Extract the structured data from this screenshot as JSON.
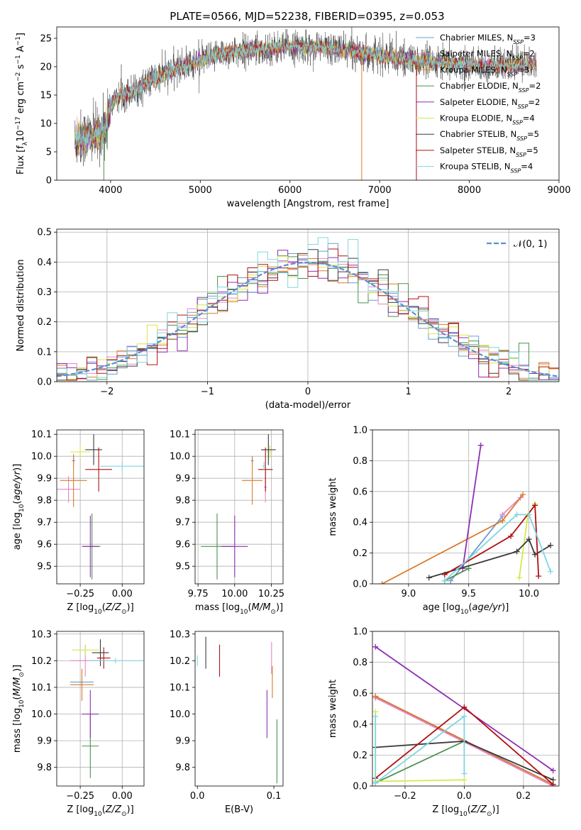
{
  "title": "PLATE=0566, MJD=52238, FIBERID=0395, z=0.053",
  "model_colors": [
    "#6b9bd0",
    "#e884c4",
    "#d97b2b",
    "#4d8f4f",
    "#8e2fb0",
    "#d6e84a",
    "#3a3a3a",
    "#b01010",
    "#7fd6df"
  ],
  "chart_data": [
    {
      "id": "spectrum",
      "type": "line",
      "xlabel": "wavelength [Angstrom, rest frame]",
      "ylabel": "Flux [f_λ10^-17 erg cm^-2 s^-1 A^-1]",
      "xlim": [
        3400,
        9000
      ],
      "ylim": [
        0,
        27
      ],
      "xticks": [
        "4000",
        "5000",
        "6000",
        "7000",
        "8000",
        "9000"
      ],
      "yticks": [
        "0",
        "5",
        "10",
        "15",
        "20",
        "25"
      ],
      "grid": false,
      "legend_position": "right",
      "legend": [
        {
          "base": "Chabrier MILES, N",
          "sub": "SSP",
          "tail": "=3"
        },
        {
          "base": "Salpeter MILES, N",
          "sub": "SSP",
          "tail": "=2"
        },
        {
          "base": "Kroupa MILES, N",
          "sub": "SSP",
          "tail": "=3"
        },
        {
          "base": "Chabrier ELODIE, N",
          "sub": "SSP",
          "tail": "=2"
        },
        {
          "base": "Salpeter ELODIE, N",
          "sub": "SSP",
          "tail": "=2"
        },
        {
          "base": "Kroupa ELODIE, N",
          "sub": "SSP",
          "tail": "=4"
        },
        {
          "base": "Chabrier STELIB, N",
          "sub": "SSP",
          "tail": "=5"
        },
        {
          "base": "Salpeter STELIB, N",
          "sub": "SSP",
          "tail": "=5"
        },
        {
          "base": "Kroupa STELIB, N",
          "sub": "SSP",
          "tail": "=4"
        }
      ],
      "continuum": [
        [
          3600,
          7
        ],
        [
          3700,
          7.5
        ],
        [
          3850,
          8
        ],
        [
          3950,
          9.5
        ],
        [
          4000,
          13
        ],
        [
          4100,
          15
        ],
        [
          4300,
          16
        ],
        [
          4500,
          18
        ],
        [
          4800,
          20
        ],
        [
          5000,
          21
        ],
        [
          5300,
          22.5
        ],
        [
          5600,
          23
        ],
        [
          6000,
          23.5
        ],
        [
          6300,
          23.5
        ],
        [
          6600,
          23
        ],
        [
          7000,
          22
        ],
        [
          7400,
          21
        ],
        [
          7800,
          20.5
        ],
        [
          8200,
          20
        ],
        [
          8700,
          20.5
        ]
      ],
      "spikes": [
        [
          3925,
          0,
          "#4d8f4f"
        ],
        [
          6800,
          0,
          "#d97b2b"
        ],
        [
          7410,
          0,
          "#b01010"
        ]
      ]
    },
    {
      "id": "residuals",
      "type": "step",
      "xlabel": "(data-model)/error",
      "ylabel": "Normed distribution",
      "xlim": [
        -2.5,
        2.5
      ],
      "ylim": [
        0,
        0.51
      ],
      "xticks": [
        "−2",
        "−1",
        "0",
        "1",
        "2"
      ],
      "yticks": [
        "0.0",
        "0.1",
        "0.2",
        "0.3",
        "0.4",
        "0.5"
      ],
      "grid": true,
      "legend_position": "top-right",
      "gauss_label": "𝒩(0, 1)",
      "bin_width": 0.1
    },
    {
      "id": "age_vs_Z",
      "type": "errorbar",
      "xlabel": "Z [log10(Z/Z⊙)]",
      "ylabel": "age  [log10(age/yr)]",
      "xlim": [
        -0.39,
        0.13
      ],
      "ylim": [
        9.42,
        10.12
      ],
      "xticks": [
        "−0.25",
        "0.00"
      ],
      "yticks": [
        "9.5",
        "9.6",
        "9.7",
        "9.8",
        "9.9",
        "10.0",
        "10.1"
      ],
      "grid": true,
      "points": [
        {
          "x": -0.29,
          "y": 9.98,
          "xerr": 0.01,
          "yerr": 0.02,
          "c": 0
        },
        {
          "x": -0.32,
          "y": 9.85,
          "xerr": 0.07,
          "yerr": 0.06,
          "c": 1
        },
        {
          "x": -0.29,
          "y": 9.89,
          "xerr": 0.08,
          "yerr": 0.12,
          "c": 2
        },
        {
          "x": -0.18,
          "y": 9.59,
          "xerr": 0.05,
          "yerr": 0.15,
          "c": 3
        },
        {
          "x": -0.19,
          "y": 9.59,
          "xerr": 0.05,
          "yerr": 0.14,
          "c": 4
        },
        {
          "x": -0.25,
          "y": 10.02,
          "xerr": 0.06,
          "yerr": 0.03,
          "c": 5
        },
        {
          "x": -0.17,
          "y": 10.03,
          "xerr": 0.05,
          "yerr": 0.07,
          "c": 6
        },
        {
          "x": -0.14,
          "y": 9.94,
          "xerr": 0.08,
          "yerr": 0.1,
          "c": 7
        },
        {
          "x": 0.0,
          "y": 9.955,
          "xerr": 0.13,
          "yerr": 0.02,
          "c": 8
        }
      ]
    },
    {
      "id": "age_vs_mass",
      "type": "errorbar",
      "xlabel": "mass [log10(M/M⊙)]",
      "ylabel": "",
      "xlim": [
        9.73,
        10.33
      ],
      "ylim": [
        9.42,
        10.12
      ],
      "xticks": [
        "9.75",
        "10.00",
        "10.25"
      ],
      "yticks": [
        "9.5",
        "9.6",
        "9.7",
        "9.8",
        "9.9",
        "10.0",
        "10.1"
      ],
      "grid": true,
      "points": [
        {
          "x": 10.12,
          "y": 9.98,
          "xerr": 0.01,
          "yerr": 0.02,
          "c": 0
        },
        {
          "x": 10.21,
          "y": 9.86,
          "xerr": 0.01,
          "yerr": 0.07,
          "c": 1
        },
        {
          "x": 10.12,
          "y": 9.89,
          "xerr": 0.07,
          "yerr": 0.11,
          "c": 2
        },
        {
          "x": 9.88,
          "y": 9.59,
          "xerr": 0.11,
          "yerr": 0.15,
          "c": 3
        },
        {
          "x": 10.0,
          "y": 9.59,
          "xerr": 0.09,
          "yerr": 0.14,
          "c": 4
        },
        {
          "x": 10.24,
          "y": 10.02,
          "xerr": 0.02,
          "yerr": 0.03,
          "c": 5
        },
        {
          "x": 10.23,
          "y": 10.03,
          "xerr": 0.05,
          "yerr": 0.07,
          "c": 6
        },
        {
          "x": 10.21,
          "y": 9.94,
          "xerr": 0.05,
          "yerr": 0.1,
          "c": 7
        },
        {
          "x": 10.2,
          "y": 9.955,
          "xerr": 0.01,
          "yerr": 0.02,
          "c": 8
        }
      ]
    },
    {
      "id": "mw_vs_age",
      "type": "line",
      "xlabel": "age  [log10(age/yr)]",
      "ylabel": "mass weight",
      "xlim": [
        8.7,
        10.25
      ],
      "ylim": [
        0,
        1.0
      ],
      "xticks": [
        "9.0",
        "9.5",
        "10.0"
      ],
      "yticks": [
        "0.0",
        "0.2",
        "0.4",
        "0.6",
        "0.8",
        "1.0"
      ],
      "grid": true,
      "series": [
        {
          "c": 0,
          "x": [
            9.35,
            9.78
          ],
          "y": [
            0.02,
            0.44
          ]
        },
        {
          "c": 1,
          "x": [
            9.78,
            9.93
          ],
          "y": [
            0.45,
            0.56
          ]
        },
        {
          "c": 2,
          "x": [
            8.78,
            9.78,
            9.95
          ],
          "y": [
            0.0,
            0.41,
            0.58
          ]
        },
        {
          "c": 3,
          "x": [
            9.3,
            9.5
          ],
          "y": [
            0.02,
            0.1
          ]
        },
        {
          "c": 4,
          "x": [
            9.45,
            9.6
          ],
          "y": [
            0.1,
            0.9
          ]
        },
        {
          "c": 5,
          "x": [
            9.92,
            9.99,
            10.05
          ],
          "y": [
            0.04,
            0.44,
            0.52
          ]
        },
        {
          "c": 6,
          "x": [
            9.17,
            9.9,
            10.0,
            10.05,
            10.18
          ],
          "y": [
            0.04,
            0.21,
            0.29,
            0.19,
            0.25
          ]
        },
        {
          "c": 7,
          "x": [
            9.3,
            9.85,
            10.05,
            10.08
          ],
          "y": [
            0.06,
            0.31,
            0.51,
            0.05
          ]
        },
        {
          "c": 8,
          "x": [
            9.3,
            9.9,
            10.0,
            10.18
          ],
          "y": [
            0.02,
            0.45,
            0.45,
            0.08
          ]
        }
      ]
    },
    {
      "id": "mass_vs_Z",
      "type": "errorbar",
      "xlabel": "Z [log10(Z/Z⊙)]",
      "ylabel": "mass [log10(M/M⊙)]",
      "xlim": [
        -0.39,
        0.13
      ],
      "ylim": [
        9.73,
        10.31
      ],
      "xticks": [
        "−0.25",
        "0.00"
      ],
      "yticks": [
        "9.8",
        "9.9",
        "10.0",
        "10.1",
        "10.2",
        "10.3"
      ],
      "grid": true,
      "points": [
        {
          "x": -0.24,
          "y": 10.12,
          "xerr": 0.07,
          "yerr": 0.01,
          "c": 0
        },
        {
          "x": -0.22,
          "y": 10.2,
          "xerr": 0.09,
          "yerr": 0.06,
          "c": 1
        },
        {
          "x": -0.24,
          "y": 10.11,
          "xerr": 0.07,
          "yerr": 0.06,
          "c": 2
        },
        {
          "x": -0.19,
          "y": 9.88,
          "xerr": 0.05,
          "yerr": 0.12,
          "c": 3
        },
        {
          "x": -0.19,
          "y": 10.0,
          "xerr": 0.05,
          "yerr": 0.09,
          "c": 4
        },
        {
          "x": -0.22,
          "y": 10.24,
          "xerr": 0.08,
          "yerr": 0.02,
          "c": 5
        },
        {
          "x": -0.13,
          "y": 10.23,
          "xerr": 0.05,
          "yerr": 0.05,
          "c": 6
        },
        {
          "x": -0.11,
          "y": 10.21,
          "xerr": 0.04,
          "yerr": 0.04,
          "c": 7
        },
        {
          "x": -0.04,
          "y": 10.2,
          "xerr": 0.16,
          "yerr": 0.01,
          "c": 8
        }
      ]
    },
    {
      "id": "mass_vs_EBV",
      "type": "errorbar",
      "xlabel": "E(B-V)",
      "ylabel": "",
      "xlim": [
        -0.003,
        0.112
      ],
      "ylim": [
        9.73,
        10.31
      ],
      "xticks": [
        "0.0",
        "0.1"
      ],
      "yticks": [
        "9.8",
        "9.9",
        "10.0",
        "10.1",
        "10.2",
        "10.3"
      ],
      "grid": false,
      "points": [
        {
          "x": 0.0,
          "y": 10.2,
          "xerr": 0.0,
          "yerr": 0.02,
          "c": 8
        },
        {
          "x": 0.011,
          "y": 10.23,
          "xerr": 0.0,
          "yerr": 0.06,
          "c": 6
        },
        {
          "x": 0.029,
          "y": 10.2,
          "xerr": 0.0,
          "yerr": 0.06,
          "c": 7
        },
        {
          "x": 0.091,
          "y": 10.0,
          "xerr": 0.0,
          "yerr": 0.09,
          "c": 4
        },
        {
          "x": 0.097,
          "y": 10.21,
          "xerr": 0.0,
          "yerr": 0.06,
          "c": 1
        },
        {
          "x": 0.098,
          "y": 10.12,
          "xerr": 0.0,
          "yerr": 0.06,
          "c": 2
        },
        {
          "x": 0.104,
          "y": 9.86,
          "xerr": 0.0,
          "yerr": 0.12,
          "c": 3
        }
      ]
    },
    {
      "id": "mw_vs_Z",
      "type": "line",
      "xlabel": "Z [log10(Z/Z⊙)]",
      "ylabel": "mass weight",
      "xlim": [
        -0.31,
        0.32
      ],
      "ylim": [
        0,
        1.0
      ],
      "xticks": [
        "−0.2",
        "0.0",
        "0.2"
      ],
      "yticks": [
        "0.0",
        "0.2",
        "0.4",
        "0.6",
        "0.8",
        "1.0"
      ],
      "grid": true,
      "series": [
        {
          "c": 0,
          "x": [
            -0.3,
            0.3
          ],
          "y": [
            0.58,
            0.0
          ]
        },
        {
          "c": 1,
          "x": [
            -0.3,
            0.3
          ],
          "y": [
            0.57,
            0.0
          ]
        },
        {
          "c": 2,
          "x": [
            -0.3,
            0.3
          ],
          "y": [
            0.58,
            0.01
          ]
        },
        {
          "c": 3,
          "x": [
            -0.3,
            0.0
          ],
          "y": [
            0.02,
            0.29
          ]
        },
        {
          "c": 4,
          "x": [
            -0.3,
            0.3
          ],
          "y": [
            0.9,
            0.1
          ]
        },
        {
          "c": 5,
          "x": [
            -0.3,
            -0.3,
            0.0
          ],
          "y": [
            0.48,
            0.03,
            0.04
          ]
        },
        {
          "c": 6,
          "x": [
            -0.3,
            0.0,
            0.3
          ],
          "y": [
            0.25,
            0.29,
            0.04
          ]
        },
        {
          "c": 7,
          "x": [
            -0.3,
            0.0,
            0.3
          ],
          "y": [
            0.05,
            0.51,
            0.01
          ]
        },
        {
          "c": 8,
          "x": [
            -0.3,
            -0.3,
            0.0,
            0.0
          ],
          "y": [
            0.45,
            0.02,
            0.45,
            0.08
          ]
        }
      ]
    }
  ]
}
